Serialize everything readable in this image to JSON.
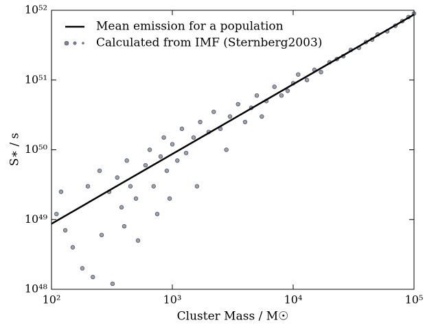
{
  "chart_data": {
    "type": "scatter",
    "xlabel": "Cluster Mass / M☉",
    "ylabel": "S∗ / s",
    "log_x": true,
    "log_y": true,
    "grid": false,
    "legend": "upper left",
    "xlim": [
      100,
      100000
    ],
    "ylim": [
      1e+48,
      1e+52
    ],
    "xticks": [
      {
        "value": 100,
        "label": "10²"
      },
      {
        "value": 1000,
        "label": "10³"
      },
      {
        "value": 10000,
        "label": "10⁴"
      },
      {
        "value": 100000,
        "label": "10⁵"
      }
    ],
    "yticks": [
      {
        "value": 1e+48,
        "label": "10⁴⁸"
      },
      {
        "value": 1e+49,
        "label": "10⁴⁹"
      },
      {
        "value": 1e+50,
        "label": "10⁵⁰"
      },
      {
        "value": 1e+51,
        "label": "10⁵¹"
      },
      {
        "value": 1e+52,
        "label": "10⁵²"
      }
    ],
    "lines": [
      {
        "name": "Mean emission for a population",
        "color": "#000000",
        "x": [
          100,
          100000
        ],
        "values": [
          8.7e+48,
          8.7e+51
        ]
      }
    ],
    "series": [
      {
        "name": "Calculated from IMF (Sternberg2003)",
        "color": "#7a7f9a",
        "x": [
          120,
          110,
          130,
          150,
          180,
          200,
          220,
          250,
          260,
          300,
          320,
          350,
          380,
          400,
          420,
          450,
          500,
          520,
          600,
          650,
          700,
          750,
          800,
          850,
          900,
          950,
          1000,
          1100,
          1200,
          1300,
          1500,
          1600,
          1700,
          2000,
          2200,
          2500,
          2800,
          3000,
          3500,
          4000,
          4500,
          5000,
          5500,
          6000,
          7000,
          8000,
          9000,
          10000,
          11000,
          13000,
          15000,
          17000,
          20000,
          23000,
          26000,
          30000,
          35000,
          40000,
          45000,
          50000,
          60000,
          70000,
          80000,
          90000,
          100000
        ],
        "values": [
          2.5e+49,
          1.2e+49,
          7e+48,
          4e+48,
          2e+48,
          3e+49,
          1.5e+48,
          5e+49,
          6e+48,
          2.5e+49,
          1.2e+48,
          4e+49,
          1.5e+49,
          8e+48,
          7e+49,
          3e+49,
          2e+49,
          5e+48,
          6e+49,
          1e+50,
          3e+49,
          1.2e+49,
          8e+49,
          1.5e+50,
          5e+49,
          2e+49,
          1.2e+50,
          7e+49,
          2e+50,
          9e+49,
          1.5e+50,
          3e+49,
          2.5e+50,
          1.8e+50,
          3.5e+50,
          2e+50,
          1e+50,
          3e+50,
          4.5e+50,
          2.5e+50,
          4e+50,
          6e+50,
          3e+50,
          5e+50,
          8e+50,
          6e+50,
          7e+50,
          9e+50,
          1.2e+51,
          1e+51,
          1.4e+51,
          1.3e+51,
          1.8e+51,
          2e+51,
          2.2e+51,
          2.7e+51,
          2.9e+51,
          3.5e+51,
          3.8e+51,
          4.5e+51,
          5e+51,
          6e+51,
          7e+51,
          8e+51,
          9e+51
        ]
      }
    ]
  }
}
